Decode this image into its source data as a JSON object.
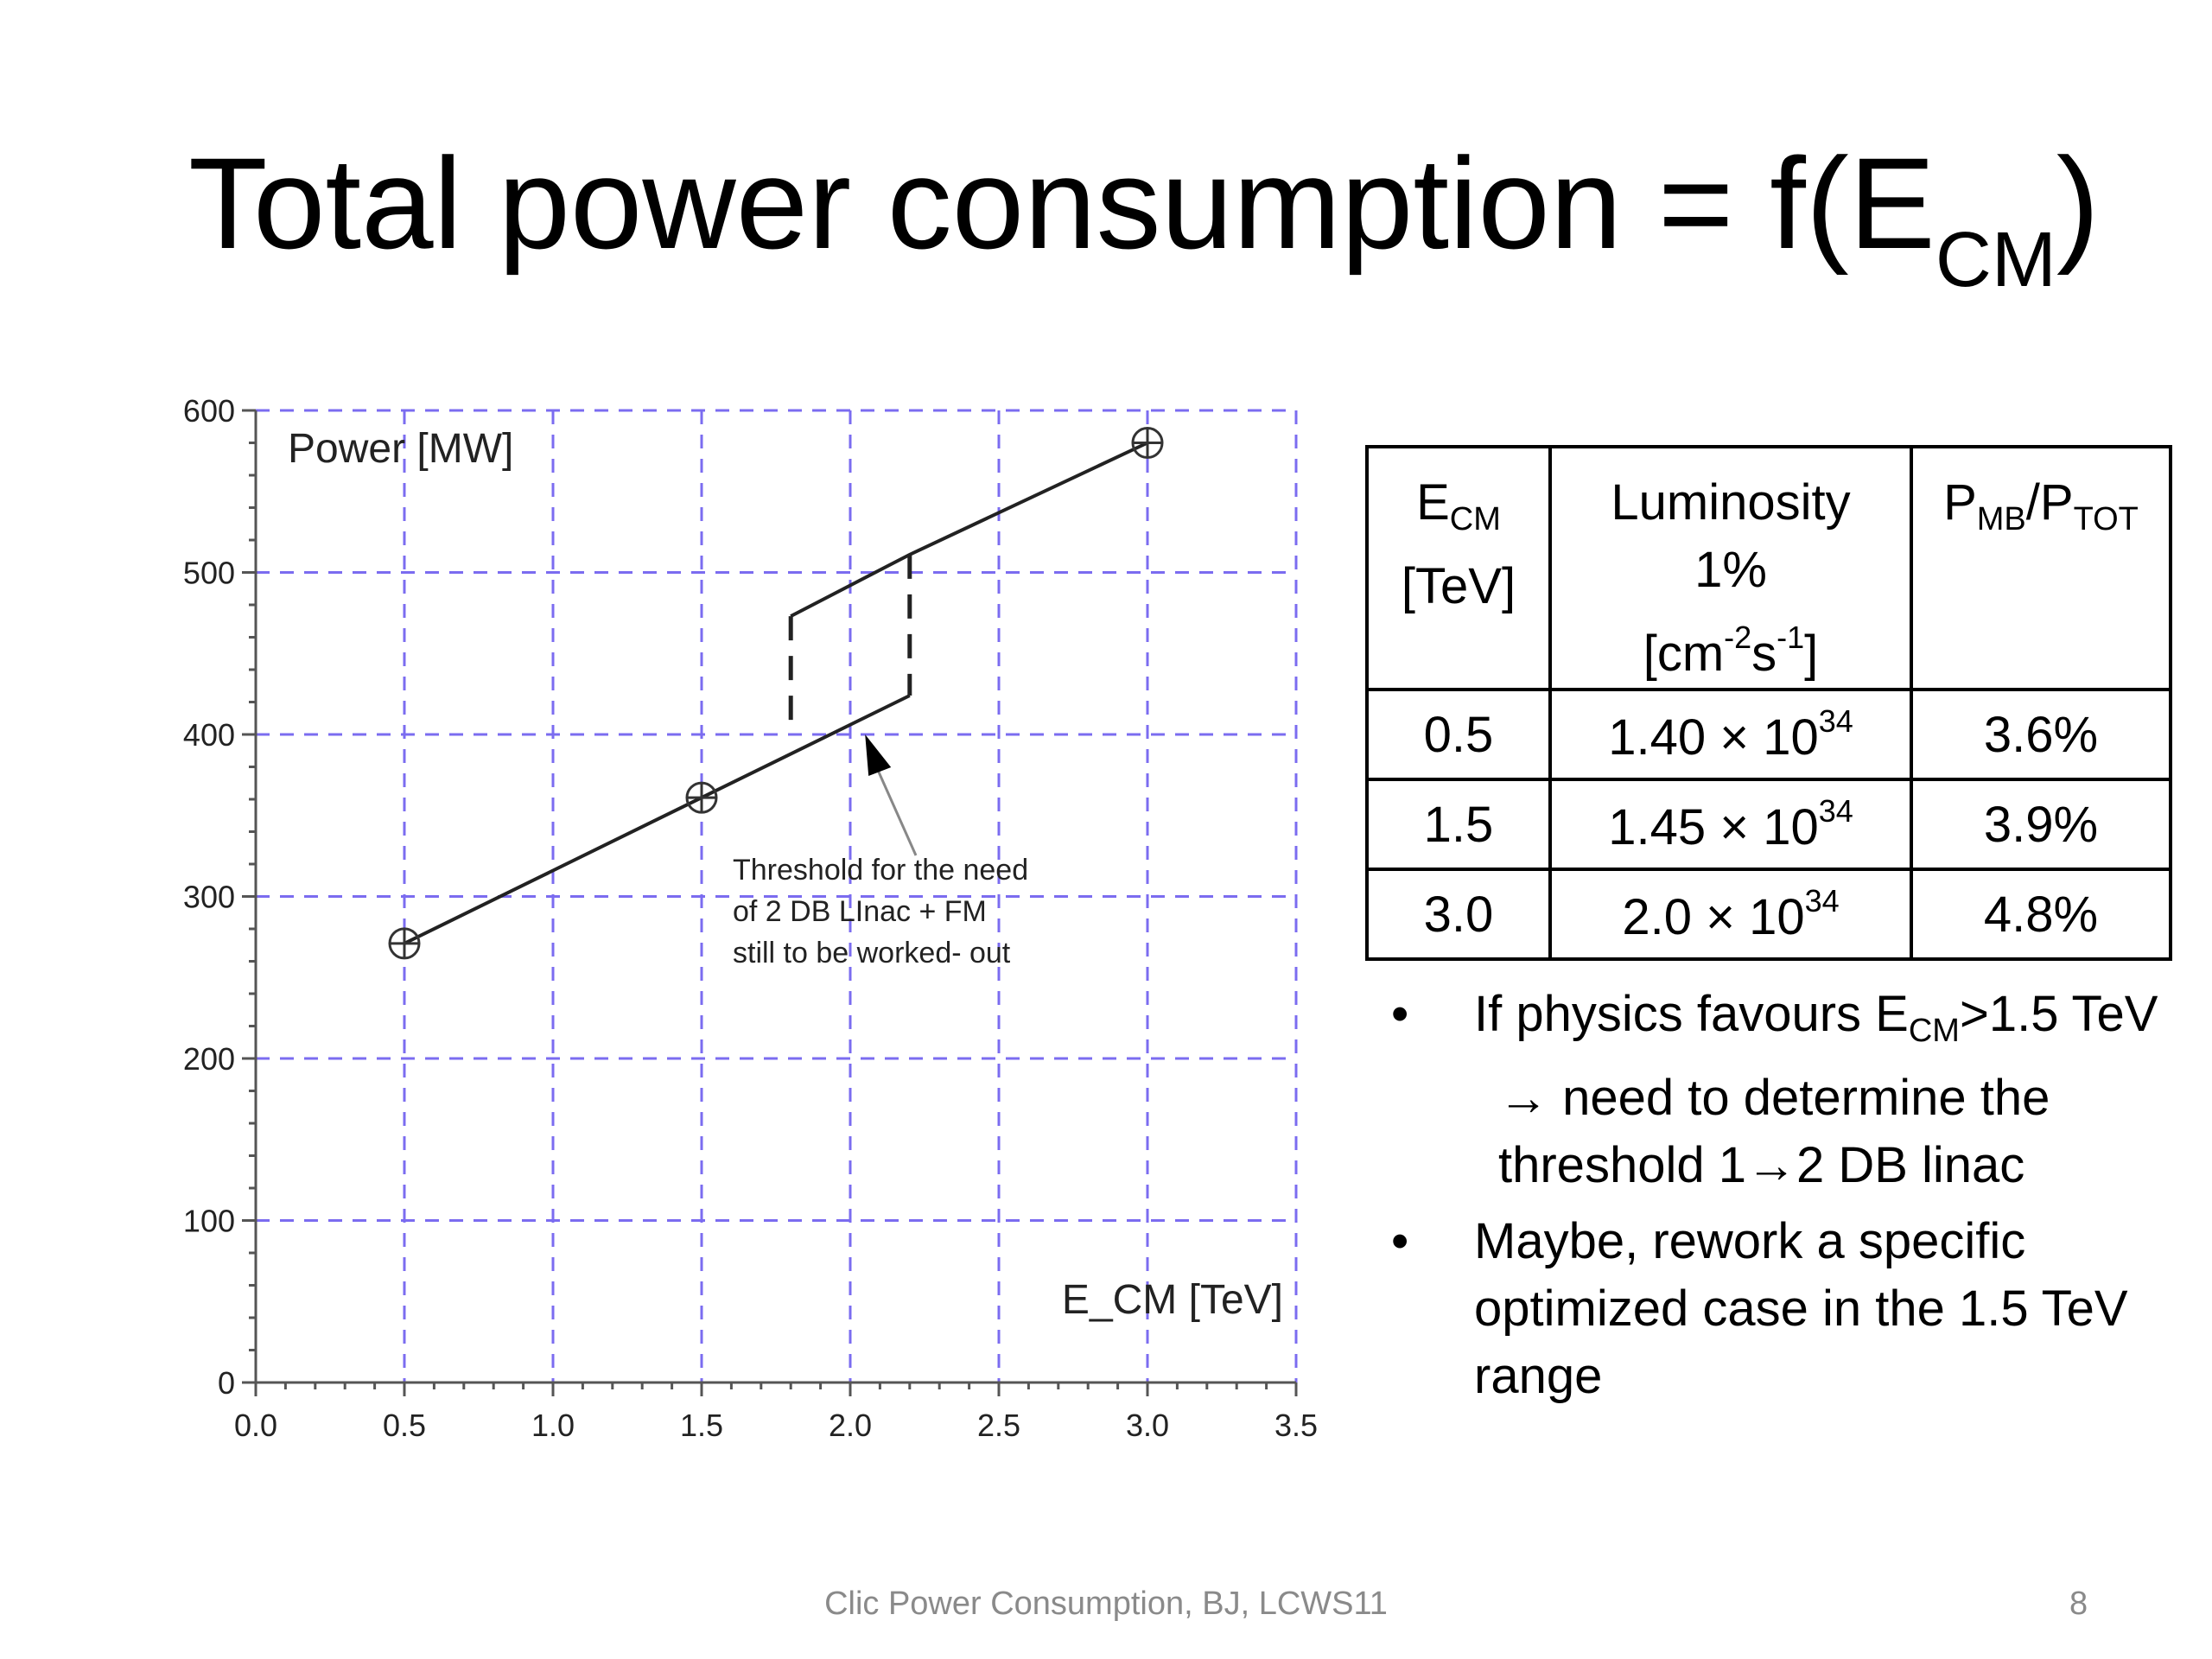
{
  "slide": {
    "title_main": "Total power consumption = f(E",
    "title_sub": "CM",
    "title_close": ")",
    "footer": "Clic Power Consumption, BJ,  LCWS11",
    "page_number": "8"
  },
  "chart_data": {
    "type": "line",
    "ylabel": "Power [MW]",
    "xlabel": "E_CM [TeV]",
    "xlim": [
      0.0,
      3.5
    ],
    "ylim": [
      0,
      600
    ],
    "x_ticks": [
      0.0,
      0.5,
      1.0,
      1.5,
      2.0,
      2.5,
      3.0,
      3.5
    ],
    "x_tick_labels": [
      "0.0",
      "0.5",
      "1.0",
      "1.5",
      "2.0",
      "2.5",
      "3.0",
      "3.5"
    ],
    "y_ticks": [
      0,
      100,
      200,
      300,
      400,
      500,
      600
    ],
    "y_tick_labels": [
      "0",
      "100",
      "200",
      "300",
      "400",
      "500",
      "600"
    ],
    "grid": true,
    "markers": [
      {
        "x": 0.5,
        "y": 271
      },
      {
        "x": 1.5,
        "y": 361
      },
      {
        "x": 3.0,
        "y": 580
      }
    ],
    "lines": [
      {
        "style": "solid",
        "points": [
          [
            0.5,
            271
          ],
          [
            2.2,
            424
          ]
        ]
      },
      {
        "style": "solid",
        "points": [
          [
            1.8,
            473
          ],
          [
            2.2,
            511
          ],
          [
            3.0,
            580
          ]
        ]
      },
      {
        "style": "dashed",
        "points": [
          [
            1.8,
            473
          ],
          [
            1.8,
            400
          ]
        ]
      },
      {
        "style": "dashed",
        "points": [
          [
            2.2,
            511
          ],
          [
            2.2,
            424
          ]
        ]
      }
    ],
    "annotation": {
      "lines": [
        "Threshold for the need",
        "of 2 DB LInac + FM",
        "still to be worked- out"
      ],
      "arrow_to": [
        2.05,
        400
      ]
    }
  },
  "table": {
    "headers": [
      {
        "main": "E",
        "sub": "CM",
        "line2": "[TeV]"
      },
      {
        "line1": "Luminosity",
        "line2": "1%",
        "unit_a": "[cm",
        "sup_a": "-2",
        "unit_b": "s",
        "sup_b": "-1",
        "unit_c": "]"
      },
      {
        "p1": "P",
        "s1": "MB",
        "slash": "/P",
        "s2": "TOT"
      }
    ],
    "rows": [
      {
        "ecm": "0.5",
        "lum": "1.40 × 10",
        "lum_exp": "34",
        "ratio": "3.6%"
      },
      {
        "ecm": "1.5",
        "lum": "1.45 × 10",
        "lum_exp": "34",
        "ratio": "3.9%"
      },
      {
        "ecm": "3.0",
        "lum": "2.0 × 10",
        "lum_exp": "34",
        "ratio": "4.8%"
      }
    ]
  },
  "bullets": [
    {
      "marker": "•",
      "a": "If physics favours E",
      "a_sub": "CM",
      "a_end": ">1.5 TeV",
      "b": "→ need to determine the",
      "c": "threshold 1→2 DB linac"
    },
    {
      "marker": "•",
      "text": "Maybe, rework a specific optimized case in the 1.5 TeV range"
    }
  ]
}
